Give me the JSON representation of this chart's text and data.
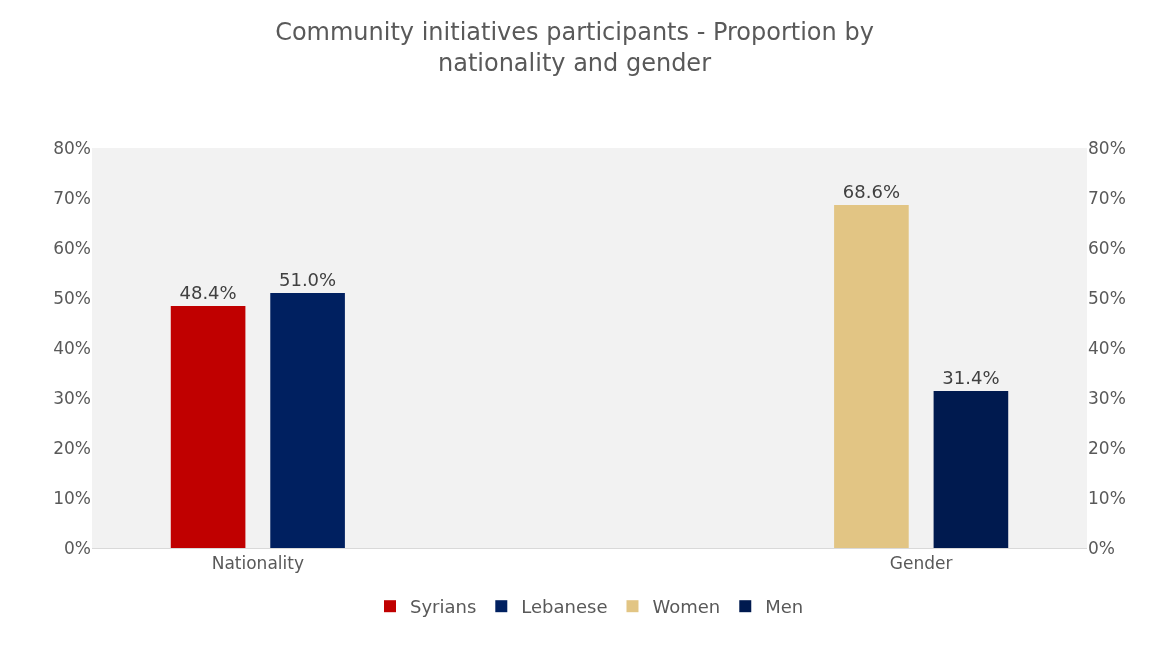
{
  "chart_data": {
    "type": "bar",
    "title": "Community initiatives participants - Proportion by nationality and gender",
    "categories": [
      "Nationality",
      "Gender"
    ],
    "series": [
      {
        "name": "Syrians",
        "color": "#c00000",
        "values": [
          48.4,
          null
        ],
        "value_labels": [
          "48.4%",
          null
        ]
      },
      {
        "name": "Lebanese",
        "color": "#002060",
        "values": [
          51.0,
          null
        ],
        "value_labels": [
          "51.0%",
          null
        ]
      },
      {
        "name": "Women",
        "color": "#e2c584",
        "axis": "y2",
        "values": [
          null,
          68.6
        ],
        "value_labels": [
          null,
          "68.6%"
        ]
      },
      {
        "name": "Men",
        "color": "#001a4f",
        "axis": "y2",
        "values": [
          null,
          31.4
        ],
        "value_labels": [
          null,
          "31.4%"
        ]
      }
    ],
    "ylim": [
      0,
      80
    ],
    "yticks": [
      {
        "value": 0,
        "label": "0%"
      },
      {
        "value": 10,
        "label": "10%"
      },
      {
        "value": 20,
        "label": "20%"
      },
      {
        "value": 30,
        "label": "30%"
      },
      {
        "value": 40,
        "label": "40%"
      },
      {
        "value": 50,
        "label": "50%"
      },
      {
        "value": 60,
        "label": "60%"
      },
      {
        "value": 70,
        "label": "70%"
      },
      {
        "value": 80,
        "label": "80%"
      }
    ],
    "y2lim": [
      0,
      80
    ],
    "y2ticks": [
      {
        "value": 0,
        "label": "0%"
      },
      {
        "value": 10,
        "label": "10%"
      },
      {
        "value": 20,
        "label": "20%"
      },
      {
        "value": 30,
        "label": "30%"
      },
      {
        "value": 40,
        "label": "40%"
      },
      {
        "value": 50,
        "label": "50%"
      },
      {
        "value": 60,
        "label": "60%"
      },
      {
        "value": 70,
        "label": "70%"
      },
      {
        "value": 80,
        "label": "80%"
      }
    ],
    "grid": false,
    "legend": "bottom"
  }
}
